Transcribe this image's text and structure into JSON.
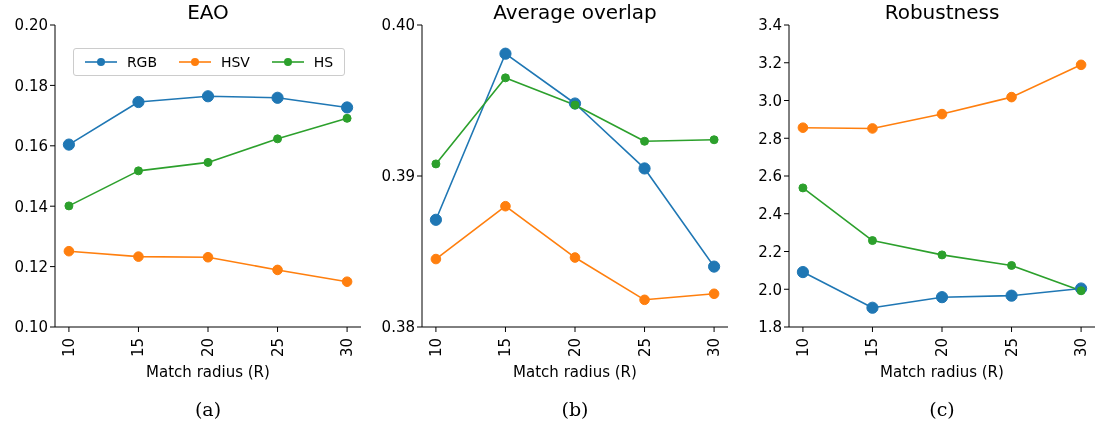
{
  "chart_data": [
    {
      "type": "line",
      "title": "EAO",
      "xlabel": "Match radius (R)",
      "annotations": [
        "(a)"
      ],
      "x": [
        10,
        15,
        20,
        25,
        30
      ],
      "xlim": [
        9,
        31
      ],
      "xticks": [
        10,
        15,
        20,
        25,
        30
      ],
      "ylim": [
        0.1,
        0.2
      ],
      "yticks": [
        {
          "value": 0.1,
          "label": "0.10"
        },
        {
          "value": 0.12,
          "label": "0.12"
        },
        {
          "value": 0.14,
          "label": "0.14"
        },
        {
          "value": 0.16,
          "label": "0.16"
        },
        {
          "value": 0.18,
          "label": "0.18"
        },
        {
          "value": 0.2,
          "label": "0.20"
        }
      ],
      "marker": "circle",
      "legend": "top",
      "series": [
        {
          "name": "RGB",
          "color": "#1f77b4",
          "values": [
            0.1604,
            0.1745,
            0.1764,
            0.1759,
            0.1727
          ]
        },
        {
          "name": "HSV",
          "color": "#ff7f0e",
          "values": [
            0.1251,
            0.1233,
            0.1231,
            0.1189,
            0.115
          ]
        },
        {
          "name": "HS",
          "color": "#2ca02c",
          "values": [
            0.1401,
            0.1517,
            0.1545,
            0.1623,
            0.1691
          ]
        }
      ]
    },
    {
      "type": "line",
      "title": "Average overlap",
      "xlabel": "Match radius (R)",
      "annotations": [
        "(b)"
      ],
      "x": [
        10,
        15,
        20,
        25,
        30
      ],
      "xlim": [
        9,
        31
      ],
      "xticks": [
        10,
        15,
        20,
        25,
        30
      ],
      "ylim": [
        0.38,
        0.4
      ],
      "yticks": [
        0.38,
        0.39,
        {
          "value": 0.4,
          "label": "0.40"
        }
      ],
      "marker": "circle",
      "series": [
        {
          "color": "#1f77b4",
          "values": [
            0.3871,
            0.3981,
            0.3948,
            0.3905,
            0.384
          ]
        },
        {
          "color": "#ff7f0e",
          "values": [
            0.3845,
            0.388,
            0.3846,
            0.3818,
            0.3822
          ]
        },
        {
          "color": "#2ca02c",
          "values": [
            0.3908,
            0.3965,
            0.3947,
            0.3923,
            0.3924
          ]
        }
      ]
    },
    {
      "type": "line",
      "title": "Robustness",
      "xlabel": "Match radius (R)",
      "annotations": [
        "(c)"
      ],
      "x": [
        10,
        15,
        20,
        25,
        30
      ],
      "xlim": [
        9,
        31
      ],
      "xticks": [
        10,
        15,
        20,
        25,
        30
      ],
      "ylim": [
        1.8,
        3.4
      ],
      "yticks": [
        1.8,
        {
          "value": 2,
          "label": "2.0"
        },
        2.2,
        2.4,
        2.6,
        2.8,
        {
          "value": 3,
          "label": "3.0"
        },
        3.2,
        3.4
      ],
      "marker": "circle",
      "series": [
        {
          "color": "#1f77b4",
          "values": [
            2.091,
            1.902,
            1.958,
            1.966,
            2.004
          ]
        },
        {
          "color": "#ff7f0e",
          "values": [
            2.856,
            2.852,
            2.928,
            3.018,
            3.189
          ]
        },
        {
          "color": "#2ca02c",
          "values": [
            2.537,
            2.258,
            2.182,
            2.126,
            1.992
          ]
        }
      ]
    }
  ]
}
